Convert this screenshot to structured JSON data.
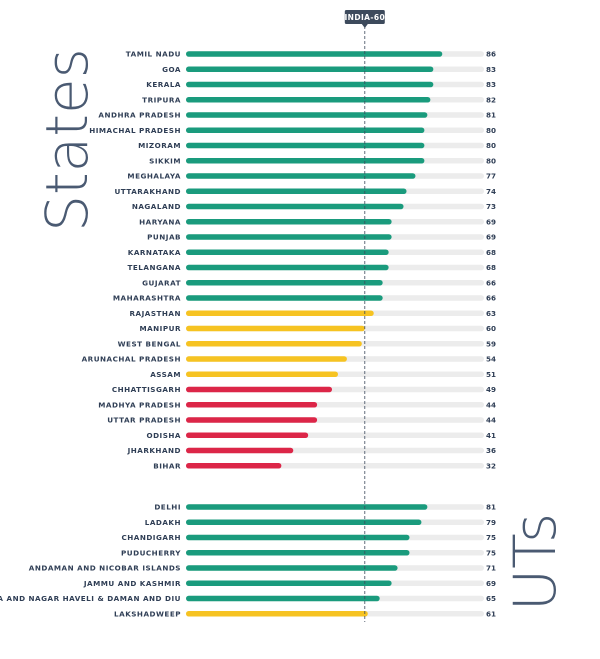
{
  "side_labels": {
    "states": "States",
    "uts": "UTs"
  },
  "reference": {
    "label": "INDIA-60",
    "value": 60
  },
  "colors": {
    "high": "#1a9b7d",
    "mid": "#f6c322",
    "low": "#dc2648",
    "track": "#ececec",
    "text": "#2f3e55",
    "marker": "#3d4a5c"
  },
  "chart_data": {
    "type": "bar",
    "orientation": "horizontal",
    "groups": [
      {
        "name": "States",
        "categories": [
          "TAMIL NADU",
          "GOA",
          "KERALA",
          "TRIPURA",
          "ANDHRA PRADESH",
          "HIMACHAL PRADESH",
          "MIZORAM",
          "SIKKIM",
          "MEGHALAYA",
          "UTTARAKHAND",
          "NAGALAND",
          "HARYANA",
          "PUNJAB",
          "KARNATAKA",
          "TELANGANA",
          "GUJARAT",
          "MAHARASHTRA",
          "RAJASTHAN",
          "MANIPUR",
          "WEST BENGAL",
          "ARUNACHAL PRADESH",
          "ASSAM",
          "CHHATTISGARH",
          "MADHYA PRADESH",
          "UTTAR PRADESH",
          "ODISHA",
          "JHARKHAND",
          "BIHAR"
        ],
        "values": [
          86,
          83,
          83,
          82,
          81,
          80,
          80,
          80,
          77,
          74,
          73,
          69,
          69,
          68,
          68,
          66,
          66,
          63,
          60,
          59,
          54,
          51,
          49,
          44,
          44,
          41,
          36,
          32
        ]
      },
      {
        "name": "UTs",
        "categories": [
          "DELHI",
          "LADAKH",
          "CHANDIGARH",
          "PUDUCHERRY",
          "ANDAMAN AND NICOBAR ISLANDS",
          "JAMMU AND KASHMIR",
          "DADRA AND NAGAR HAVELI & DAMAN AND DIU",
          "LAKSHADWEEP"
        ],
        "values": [
          81,
          79,
          75,
          75,
          71,
          69,
          65,
          61
        ]
      }
    ],
    "xlim": [
      0,
      100
    ]
  }
}
